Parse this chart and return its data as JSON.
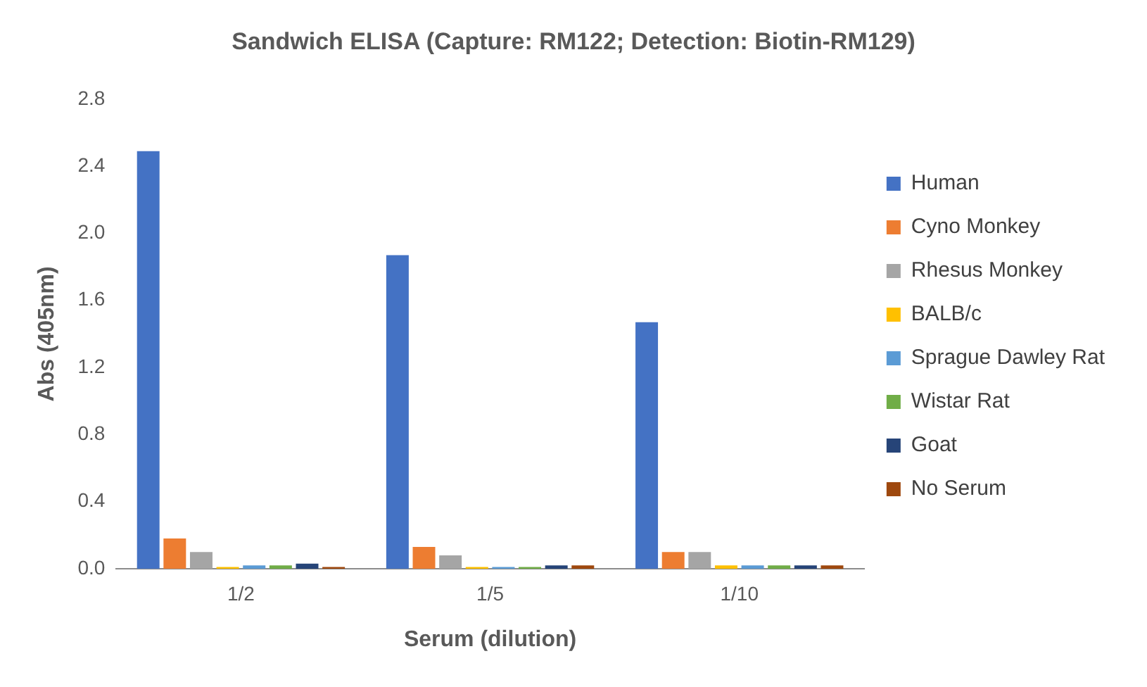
{
  "chart_data": {
    "type": "bar",
    "title": "Sandwich ELISA (Capture: RM122; Detection: Biotin-RM129)",
    "xlabel": "Serum (dilution)",
    "ylabel": "Abs (405nm)",
    "categories": [
      "1/2",
      "1/5",
      "1/10"
    ],
    "series": [
      {
        "name": "Human",
        "color": "#4472c4",
        "values": [
          2.49,
          1.87,
          1.47
        ]
      },
      {
        "name": "Cyno Monkey",
        "color": "#ed7d31",
        "values": [
          0.18,
          0.13,
          0.1
        ]
      },
      {
        "name": "Rhesus Monkey",
        "color": "#a5a5a5",
        "values": [
          0.1,
          0.08,
          0.1
        ]
      },
      {
        "name": "BALB/c",
        "color": "#ffc000",
        "values": [
          0.01,
          0.01,
          0.02
        ]
      },
      {
        "name": "Sprague Dawley Rat",
        "color": "#5b9bd5",
        "values": [
          0.02,
          0.01,
          0.02
        ]
      },
      {
        "name": "Wistar Rat",
        "color": "#70ad47",
        "values": [
          0.02,
          0.01,
          0.02
        ]
      },
      {
        "name": "Goat",
        "color": "#264478",
        "values": [
          0.03,
          0.02,
          0.02
        ]
      },
      {
        "name": "No Serum",
        "color": "#9e480e",
        "values": [
          0.01,
          0.02,
          0.02
        ]
      }
    ],
    "ylim": [
      0,
      2.8
    ],
    "yticks": [
      {
        "value": 0,
        "label": "0.0"
      },
      {
        "value": 0.4,
        "label": "0.4"
      },
      {
        "value": 0.8,
        "label": "0.8"
      },
      {
        "value": 1.2,
        "label": "1.2"
      },
      {
        "value": 1.6,
        "label": "1.6"
      },
      {
        "value": 2,
        "label": "2.0"
      },
      {
        "value": 2.4,
        "label": "2.4"
      },
      {
        "value": 2.8,
        "label": "2.8"
      }
    ],
    "grid": false,
    "legend": "right"
  }
}
